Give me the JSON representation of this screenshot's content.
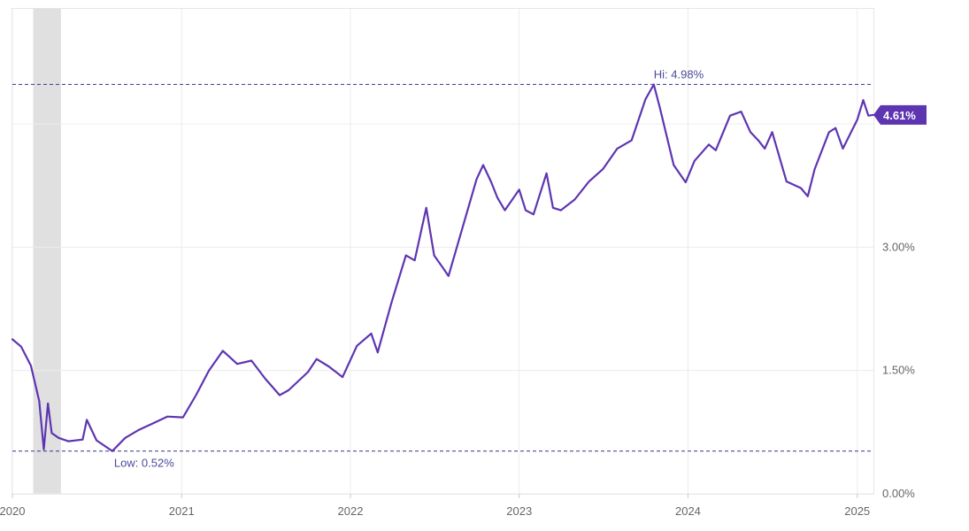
{
  "chart_data": {
    "type": "line",
    "title": "",
    "xlabel": "",
    "ylabel": "",
    "x_tick_labels": [
      "2020",
      "2021",
      "2022",
      "2023",
      "2024",
      "2025"
    ],
    "y_tick_labels": [
      "0.00%",
      "1.50%",
      "3.00%"
    ],
    "ylim": [
      0,
      5.9
    ],
    "xlim": [
      "2020-01-01",
      "2025-02-05"
    ],
    "grid": true,
    "legend": "none",
    "series_color": "#5e35b1",
    "shaded_period": {
      "start": "2020-02-15",
      "end": "2020-04-15",
      "color": "#e0e0e0"
    },
    "reference_lines": [
      {
        "label": "Hi: 4.98%",
        "value": 4.98,
        "date": "2023-10-19"
      },
      {
        "label": "Low: 0.52%",
        "value": 0.52,
        "date": "2020-08-04"
      }
    ],
    "last_value_label": "4.61%",
    "series": [
      {
        "x": [
          "2020-01-01",
          "2020-01-20",
          "2020-02-10",
          "2020-02-28",
          "2020-03-09",
          "2020-03-18",
          "2020-03-26",
          "2020-04-10",
          "2020-05-01",
          "2020-06-01",
          "2020-06-10",
          "2020-07-01",
          "2020-08-04",
          "2020-09-01",
          "2020-10-01",
          "2020-11-01",
          "2020-12-01",
          "2021-01-04",
          "2021-02-01",
          "2021-03-01",
          "2021-03-31",
          "2021-05-01",
          "2021-06-01",
          "2021-07-01",
          "2021-08-01",
          "2021-08-20",
          "2021-10-01",
          "2021-10-20",
          "2021-11-15",
          "2021-12-15",
          "2022-01-15",
          "2022-02-15",
          "2022-03-01",
          "2022-03-31",
          "2022-05-01",
          "2022-05-20",
          "2022-06-14",
          "2022-07-01",
          "2022-07-20",
          "2022-08-01",
          "2022-09-01",
          "2022-10-01",
          "2022-10-15",
          "2022-11-01",
          "2022-11-15",
          "2022-12-01",
          "2023-01-01",
          "2023-01-15",
          "2023-02-01",
          "2023-03-01",
          "2023-03-15",
          "2023-04-01",
          "2023-05-01",
          "2023-06-01",
          "2023-07-01",
          "2023-08-01",
          "2023-09-01",
          "2023-10-01",
          "2023-10-19",
          "2023-11-01",
          "2023-12-01",
          "2023-12-27",
          "2024-01-15",
          "2024-02-15",
          "2024-03-01",
          "2024-04-01",
          "2024-04-25",
          "2024-05-15",
          "2024-06-01",
          "2024-06-15",
          "2024-07-01",
          "2024-08-01",
          "2024-08-05",
          "2024-09-01",
          "2024-09-16",
          "2024-10-01",
          "2024-11-01",
          "2024-11-15",
          "2024-12-01",
          "2025-01-01",
          "2025-01-14",
          "2025-01-25",
          "2025-02-05"
        ],
        "y": [
          1.88,
          1.79,
          1.56,
          1.13,
          0.54,
          1.1,
          0.74,
          0.68,
          0.64,
          0.66,
          0.9,
          0.65,
          0.52,
          0.68,
          0.78,
          0.86,
          0.94,
          0.93,
          1.2,
          1.5,
          1.74,
          1.58,
          1.62,
          1.4,
          1.2,
          1.26,
          1.48,
          1.64,
          1.55,
          1.42,
          1.8,
          1.95,
          1.72,
          2.33,
          2.9,
          2.84,
          3.48,
          2.9,
          2.75,
          2.65,
          3.25,
          3.83,
          4.0,
          3.8,
          3.6,
          3.45,
          3.7,
          3.45,
          3.4,
          3.9,
          3.48,
          3.45,
          3.58,
          3.8,
          3.95,
          4.2,
          4.3,
          4.8,
          4.98,
          4.7,
          4.0,
          3.79,
          4.05,
          4.25,
          4.18,
          4.6,
          4.65,
          4.4,
          4.3,
          4.2,
          4.4,
          3.8,
          3.79,
          3.72,
          3.62,
          3.95,
          4.4,
          4.45,
          4.2,
          4.55,
          4.79,
          4.6,
          4.61
        ]
      }
    ]
  }
}
